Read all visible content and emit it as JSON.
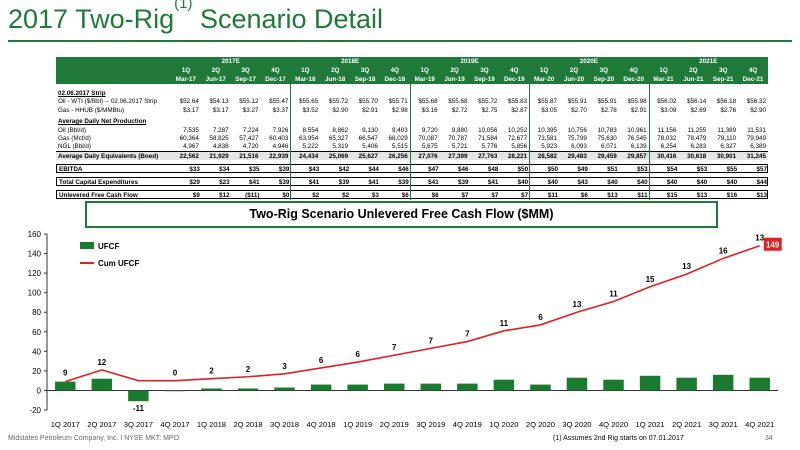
{
  "slide": {
    "title_main": "2017 Two-Rig",
    "title_sup": "(1)",
    "title_rest": " Scenario Detail",
    "footer_company": "Midstates Petroleum Company, Inc. I NYSE MKT: MPO",
    "footnote": "(1)     Assumes 2nd Rig starts on 07.01.2017",
    "page_number": "34"
  },
  "table": {
    "years": [
      "2017E",
      "2018E",
      "2019E",
      "2020E",
      "2021E"
    ],
    "quarters": [
      "1Q",
      "2Q",
      "3Q",
      "4Q",
      "1Q",
      "2Q",
      "3Q",
      "4Q",
      "1Q",
      "2Q",
      "3Q",
      "4Q",
      "1Q",
      "2Q",
      "3Q",
      "4Q",
      "1Q",
      "2Q",
      "3Q",
      "4Q"
    ],
    "dates": [
      "Mar-17",
      "Jun-17",
      "Sep-17",
      "Dec-17",
      "Mar-18",
      "Jun-18",
      "Sep-18",
      "Dec-18",
      "Mar-19",
      "Jun-19",
      "Sep-19",
      "Dec-19",
      "Mar-20",
      "Jun-20",
      "Sep-20",
      "Dec-20",
      "Mar-21",
      "Jun-21",
      "Sep-21",
      "Dec-21"
    ],
    "strip_header": "02.06.2017 Strip",
    "production_header": "Average Daily Net Production",
    "rows": [
      {
        "label": "Oil - WTI ($/Bbl) -- 02.06.2017 Strip",
        "values": [
          "$52.64",
          "$54.13",
          "$55.12",
          "$55.47",
          "$55.65",
          "$55.72",
          "$55.70",
          "$55.71",
          "$55.68",
          "$55.68",
          "$55.72",
          "$55.83",
          "$55.87",
          "$55.91",
          "$55.91",
          "$55.98",
          "$56.02",
          "$56.14",
          "$56.18",
          "$56.32"
        ]
      },
      {
        "label": "Gas - HHUB ($/MMBtu)",
        "values": [
          "$3.17",
          "$3.17",
          "$3.27",
          "$3.37",
          "$3.52",
          "$2.90",
          "$2.91",
          "$2.98",
          "$3.16",
          "$2.72",
          "$2.75",
          "$2.87",
          "$3.05",
          "$2.70",
          "$2.78",
          "$2.91",
          "$3.09",
          "$2.69",
          "$2.76",
          "$2.90"
        ]
      },
      {
        "label": "Oil (Bbl/d)",
        "values": [
          "7,535",
          "7,287",
          "7,224",
          "7,926",
          "8,554",
          "8,862",
          "9,130",
          "9,403",
          "9,720",
          "9,880",
          "10,056",
          "10,252",
          "10,395",
          "10,756",
          "10,783",
          "10,961",
          "11,156",
          "11,255",
          "11,389",
          "11,531"
        ]
      },
      {
        "label": "Gas (Mcf/d)",
        "values": [
          "60,364",
          "58,825",
          "57,427",
          "60,403",
          "63,954",
          "65,327",
          "66,547",
          "68,029",
          "70,087",
          "70,787",
          "71,584",
          "72,677",
          "73,581",
          "75,799",
          "75,630",
          "76,545",
          "78,032",
          "78,479",
          "79,110",
          "79,949"
        ]
      },
      {
        "label": "NGL (Bbl/d)",
        "values": [
          "4,967",
          "4,838",
          "4,720",
          "4,946",
          "5,222",
          "5,319",
          "5,406",
          "5,515",
          "5,675",
          "5,721",
          "5,776",
          "5,856",
          "5,923",
          "6,093",
          "6,071",
          "6,139",
          "6,254",
          "6,283",
          "6,327",
          "6,389"
        ]
      },
      {
        "label": "Average Daily Equivalents (Boed)",
        "values": [
          "22,562",
          "21,929",
          "21,516",
          "22,939",
          "24,434",
          "25,069",
          "25,627",
          "26,256",
          "27,076",
          "27,399",
          "27,763",
          "28,221",
          "28,582",
          "29,483",
          "29,459",
          "29,857",
          "30,416",
          "30,618",
          "30,901",
          "31,245"
        ]
      },
      {
        "label": "EBITDA",
        "values": [
          "$33",
          "$34",
          "$35",
          "$39",
          "$43",
          "$42",
          "$44",
          "$46",
          "$47",
          "$46",
          "$48",
          "$50",
          "$50",
          "$49",
          "$51",
          "$53",
          "$54",
          "$53",
          "$55",
          "$57"
        ]
      },
      {
        "label": "Total Capital Expenditures",
        "values": [
          "$29",
          "$23",
          "$41",
          "$39",
          "$41",
          "$39",
          "$41",
          "$39",
          "$41",
          "$39",
          "$41",
          "$40",
          "$40",
          "$43",
          "$40",
          "$40",
          "$40",
          "$40",
          "$40",
          "$44"
        ]
      },
      {
        "label": "Unlevered Free Cash Flow",
        "values": [
          "$9",
          "$12",
          "($11)",
          "$0",
          "$2",
          "$2",
          "$3",
          "$6",
          "$6",
          "$7",
          "$7",
          "$7",
          "$11",
          "$6",
          "$13",
          "$11",
          "$15",
          "$13",
          "$16",
          "$13"
        ]
      }
    ]
  },
  "chart_title": "Two-Rig Scenario Unlevered Free Cash Flow ($MM)",
  "chart_data": {
    "type": "bar",
    "title": "Two-Rig Scenario Unlevered Free Cash Flow ($MM)",
    "categories": [
      "1Q 2017",
      "2Q 2017",
      "3Q 2017",
      "4Q 2017",
      "1Q 2018",
      "2Q 2018",
      "3Q 2018",
      "4Q 2018",
      "1Q 2019",
      "2Q 2019",
      "3Q 2019",
      "4Q 2019",
      "1Q 2020",
      "2Q 2020",
      "3Q 2020",
      "4Q 2020",
      "1Q 2021",
      "2Q 2021",
      "3Q 2021",
      "4Q 2021"
    ],
    "series": [
      {
        "name": "UFCF",
        "type": "bar",
        "color": "#1a7a2e",
        "values": [
          9,
          12,
          -11,
          0,
          2,
          2,
          3,
          6,
          6,
          7,
          7,
          7,
          11,
          6,
          13,
          11,
          15,
          13,
          16,
          13
        ],
        "labels": [
          "9",
          "12",
          "-11",
          "0",
          "2",
          "2",
          "3",
          "6",
          "6",
          "7",
          "7",
          "7",
          "11",
          "6",
          "13",
          "11",
          "15",
          "13",
          "16",
          "13"
        ]
      },
      {
        "name": "Cum UFCF",
        "type": "line",
        "color": "#e02020",
        "values": [
          9,
          21,
          10,
          10,
          12,
          14,
          17,
          23,
          29,
          36,
          43,
          50,
          61,
          67,
          80,
          91,
          106,
          119,
          135,
          148
        ]
      }
    ],
    "end_label": "149",
    "yticks": [
      "160",
      "140",
      "120",
      "100",
      "80",
      "60",
      "40",
      "20",
      "0",
      "-20"
    ],
    "ylim": [
      -20,
      160
    ],
    "grid": false,
    "legend_position": "top-left"
  }
}
